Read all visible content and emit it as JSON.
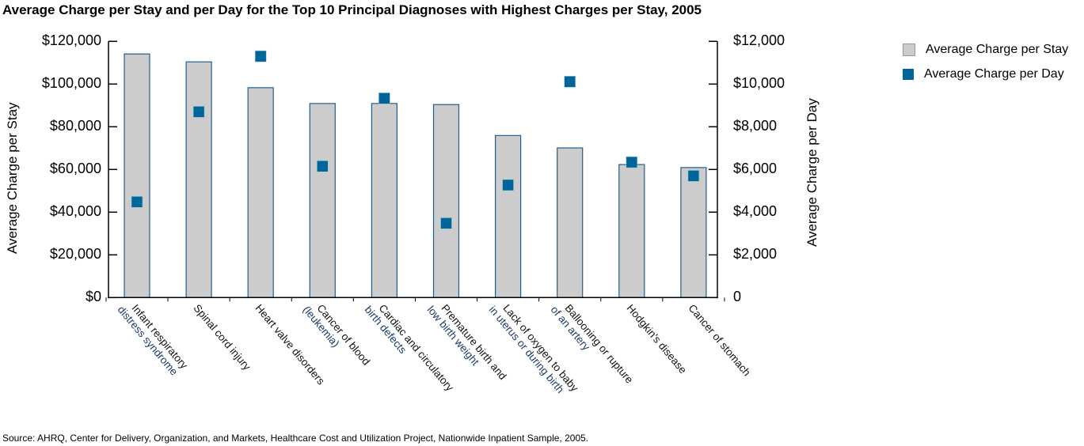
{
  "chart_data": {
    "type": "bar",
    "title": "Average Charge per Stay and per Day for the Top 10 Principal Diagnoses with Highest Charges per Stay, 2005",
    "categories": [
      [
        "Infant respiratory",
        "distress syndrome"
      ],
      [
        "Spinal cord injury"
      ],
      [
        "Heart valve disorders"
      ],
      [
        "Cancer of blood",
        "(leukemia)"
      ],
      [
        "Cardiac and circulatory",
        "birth defects"
      ],
      [
        "Premature birth and",
        "low birth weight"
      ],
      [
        "Lack of oxygen to baby",
        "in uterus or during birth"
      ],
      [
        "Ballooning or rupture",
        "of an artery"
      ],
      [
        "Hodgkin's disease"
      ],
      [
        "Cancer of stomach"
      ]
    ],
    "series": [
      {
        "name": "Average Charge per Stay",
        "type": "bar",
        "axis": "left",
        "color": "#cccccc",
        "values": [
          114100,
          110400,
          98300,
          90900,
          90900,
          90400,
          75900,
          70100,
          62300,
          60900
        ]
      },
      {
        "name": "Average Charge per Day",
        "type": "scatter",
        "axis": "right",
        "color": "#00669a",
        "values": [
          4480,
          8700,
          11300,
          6150,
          9330,
          3480,
          5270,
          10110,
          6340,
          5700
        ]
      }
    ],
    "ylabel": "Average Charge per Stay",
    "ylabel_right": "Average Charge per Day",
    "ylim": [
      0,
      120000
    ],
    "ylim_right": [
      0,
      12000
    ],
    "yticks": [
      "$0",
      "$20,000",
      "$40,000",
      "$60,000",
      "$80,000",
      "$100,000",
      "$120,000"
    ],
    "yticks_right": [
      "0",
      "$2,000",
      "$4,000",
      "$6,000",
      "$8,000",
      "$10,000",
      "$12,000"
    ],
    "bar_outline_color": "#1f5f8f",
    "grid": false,
    "legend": "top-right"
  },
  "source": "Source:  AHRQ, Center for Delivery, Organization, and Markets, Healthcare Cost and Utilization Project, Nationwide Inpatient Sample, 2005."
}
